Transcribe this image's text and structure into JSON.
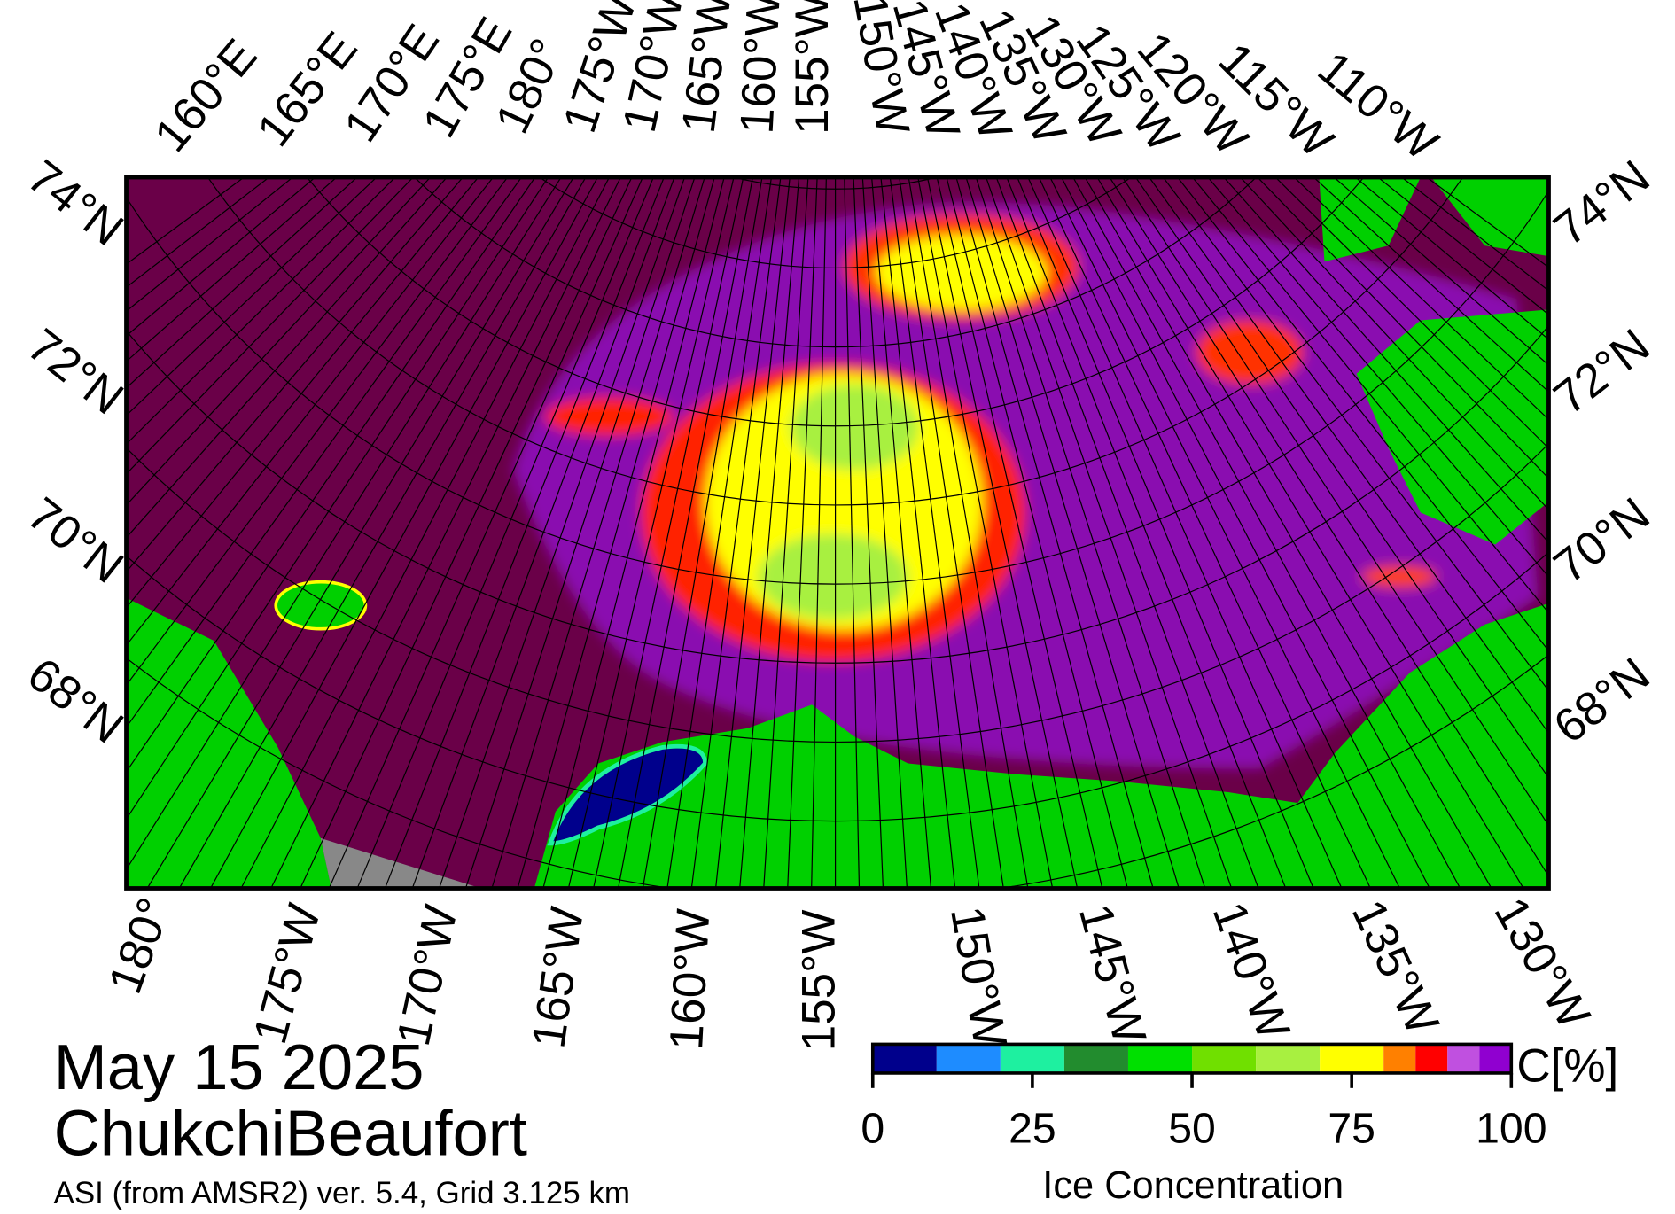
{
  "map": {
    "top_labels": [
      "160°E",
      "165°E",
      "170°E",
      "175°E",
      "180°",
      "175°W",
      "170°W",
      "165°W",
      "160°W",
      "155°W",
      "150°W",
      "145°W",
      "140°W",
      "135°W",
      "130°W",
      "125°W",
      "120°W",
      "115°W",
      "110°W"
    ],
    "bottom_labels": [
      "180°",
      "175°W",
      "170°W",
      "165°W",
      "160°W",
      "155°W",
      "150°W",
      "145°W",
      "140°W",
      "135°W",
      "130°W"
    ],
    "left_labels": [
      "74°N",
      "72°N",
      "70°N",
      "68°N"
    ],
    "right_labels": [
      "74°N",
      "72°N",
      "70°N",
      "68°N"
    ]
  },
  "footer": {
    "date": "May 15 2025",
    "region": "ChukchiBeaufort",
    "source": "ASI (from AMSR2) ver. 5.4,  Grid 3.125 km"
  },
  "colorbar": {
    "bounds": [
      0,
      10,
      20,
      30,
      40,
      50,
      60,
      70,
      80,
      85,
      90,
      95,
      100
    ],
    "colors": [
      "#00008c",
      "#1e8cff",
      "#1ef0a0",
      "#228c2e",
      "#00e000",
      "#70e000",
      "#a8f040",
      "#ffff00",
      "#ff8000",
      "#ff0000",
      "#c050e0",
      "#9000d0"
    ],
    "ticks": [
      0,
      25,
      50,
      75,
      100
    ],
    "label": "Ice Concentration",
    "unit": "C[%]"
  }
}
